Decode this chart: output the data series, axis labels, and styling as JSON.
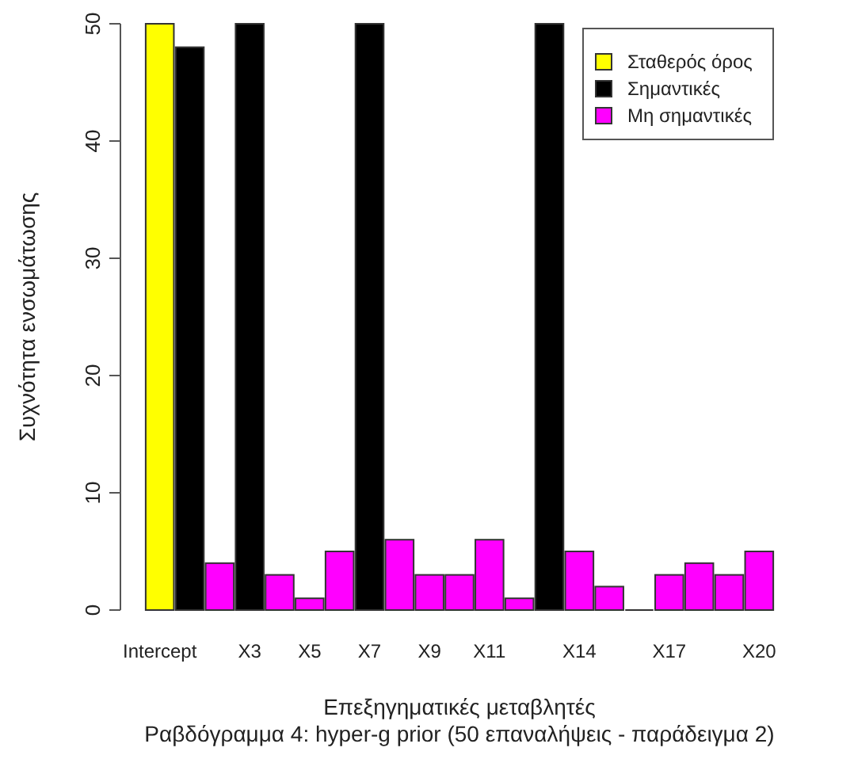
{
  "chart_data": {
    "type": "bar",
    "title": "Ραβδόγραμμα 4: hyper-g prior (50 επαναλήψεις - παράδειγμα 2)",
    "xlabel": "Επεξηγηματικές μεταβλητές",
    "ylabel": "Συχνότητα ενσωμάτωσης",
    "categories": [
      "Intercept",
      null,
      null,
      "X3",
      null,
      "X5",
      null,
      "X7",
      null,
      "X9",
      null,
      "X11",
      null,
      null,
      "X14",
      null,
      null,
      "X17",
      null,
      null,
      "X20"
    ],
    "series": [
      {
        "name": "Σταθερός όρος",
        "color": "#ffff00",
        "values": [
          50,
          null,
          null,
          null,
          null,
          null,
          null,
          null,
          null,
          null,
          null,
          null,
          null,
          null,
          null,
          null,
          null,
          null,
          null,
          null,
          null
        ]
      },
      {
        "name": "Σημαντικές",
        "color": "#000000",
        "values": [
          null,
          48,
          null,
          50,
          null,
          null,
          null,
          50,
          null,
          null,
          null,
          null,
          null,
          50,
          null,
          null,
          null,
          null,
          null,
          null,
          null
        ]
      },
      {
        "name": "Μη σημαντικές",
        "color": "#ff00ff",
        "values": [
          null,
          null,
          4,
          null,
          3,
          1,
          5,
          null,
          6,
          3,
          3,
          6,
          1,
          null,
          5,
          2,
          0,
          3,
          4,
          3,
          5
        ]
      }
    ],
    "ylim": [
      0,
      50
    ],
    "yticks": [
      0,
      10,
      20,
      30,
      40,
      50
    ],
    "legend": "top right"
  }
}
